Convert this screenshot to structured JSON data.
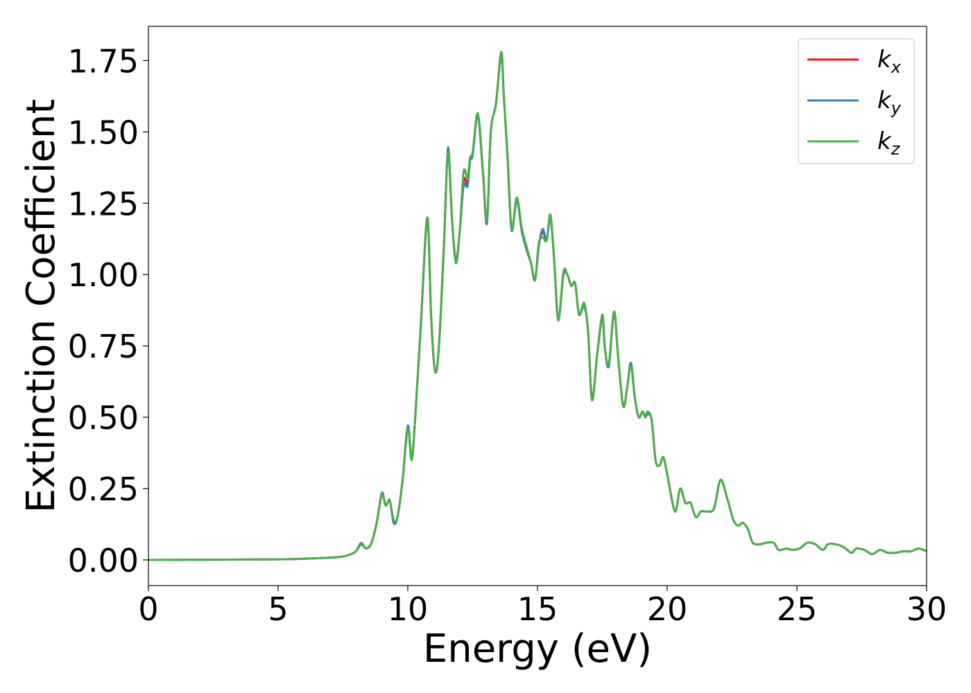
{
  "chart_data": {
    "type": "line",
    "xlabel": "Energy (eV)",
    "ylabel": "Extinction Coefficient",
    "xlim": [
      0,
      30
    ],
    "ylim": [
      -0.09,
      1.87
    ],
    "grid": false,
    "legend_position": "top-right",
    "x_ticks": [
      0,
      5,
      10,
      15,
      20,
      25,
      30
    ],
    "x_tick_labels": [
      "0",
      "5",
      "10",
      "15",
      "20",
      "25",
      "30"
    ],
    "y_ticks": [
      0.0,
      0.25,
      0.5,
      0.75,
      1.0,
      1.25,
      1.5,
      1.75
    ],
    "y_tick_labels": [
      "0.00",
      "0.25",
      "0.50",
      "0.75",
      "1.00",
      "1.25",
      "1.50",
      "1.75"
    ],
    "x": [
      0,
      5,
      7,
      7.5,
      7.8,
      8.0,
      8.2,
      8.4,
      8.6,
      8.8,
      9.0,
      9.15,
      9.3,
      9.45,
      9.6,
      9.8,
      10.0,
      10.15,
      10.3,
      10.5,
      10.75,
      10.9,
      11.05,
      11.2,
      11.4,
      11.55,
      11.7,
      11.85,
      12.0,
      12.15,
      12.3,
      12.4,
      12.5,
      12.7,
      12.9,
      13.05,
      13.2,
      13.4,
      13.6,
      13.7,
      13.85,
      14.0,
      14.2,
      14.4,
      14.6,
      14.75,
      14.9,
      15.05,
      15.2,
      15.35,
      15.5,
      15.65,
      15.8,
      16.0,
      16.15,
      16.3,
      16.45,
      16.6,
      16.8,
      16.95,
      17.1,
      17.3,
      17.5,
      17.6,
      17.75,
      17.95,
      18.1,
      18.3,
      18.45,
      18.6,
      18.75,
      18.9,
      19.05,
      19.15,
      19.25,
      19.4,
      19.55,
      19.7,
      19.85,
      20.0,
      20.3,
      20.5,
      20.7,
      20.9,
      21.1,
      21.3,
      21.5,
      21.8,
      22.05,
      22.3,
      22.55,
      22.75,
      22.9,
      23.1,
      23.3,
      23.6,
      23.8,
      24.1,
      24.3,
      24.6,
      24.8,
      25.1,
      25.4,
      25.7,
      26.0,
      26.2,
      26.5,
      26.8,
      27.1,
      27.3,
      27.6,
      27.9,
      28.2,
      28.5,
      28.8,
      29.1,
      29.4,
      29.7,
      30
    ],
    "series": [
      {
        "name": "k_x",
        "name_base": "k",
        "name_sub": "x",
        "color": "#e41a1c",
        "values": [
          0,
          0.002,
          0.008,
          0.012,
          0.02,
          0.03,
          0.055,
          0.04,
          0.06,
          0.13,
          0.23,
          0.19,
          0.21,
          0.14,
          0.15,
          0.28,
          0.47,
          0.35,
          0.52,
          0.82,
          1.2,
          0.85,
          0.66,
          0.75,
          1.12,
          1.44,
          1.2,
          1.05,
          1.15,
          1.33,
          1.32,
          1.4,
          1.42,
          1.56,
          1.35,
          1.18,
          1.5,
          1.6,
          1.78,
          1.63,
          1.4,
          1.16,
          1.26,
          1.15,
          1.08,
          1.04,
          0.98,
          1.1,
          1.15,
          1.12,
          1.2,
          1.04,
          0.84,
          1.0,
          1.0,
          0.96,
          0.97,
          0.86,
          0.89,
          0.8,
          0.56,
          0.72,
          0.85,
          0.74,
          0.68,
          0.87,
          0.72,
          0.54,
          0.6,
          0.69,
          0.57,
          0.5,
          0.52,
          0.5,
          0.51,
          0.49,
          0.35,
          0.33,
          0.36,
          0.3,
          0.17,
          0.25,
          0.2,
          0.2,
          0.15,
          0.17,
          0.17,
          0.18,
          0.28,
          0.22,
          0.14,
          0.12,
          0.13,
          0.11,
          0.06,
          0.055,
          0.06,
          0.06,
          0.035,
          0.04,
          0.035,
          0.04,
          0.06,
          0.055,
          0.035,
          0.055,
          0.055,
          0.045,
          0.025,
          0.04,
          0.035,
          0.02,
          0.035,
          0.025,
          0.025,
          0.03,
          0.03,
          0.04,
          0.03
        ]
      },
      {
        "name": "k_y",
        "name_base": "k",
        "name_sub": "y",
        "color": "#377eb8",
        "values": [
          0,
          0.002,
          0.008,
          0.012,
          0.02,
          0.03,
          0.055,
          0.04,
          0.06,
          0.13,
          0.235,
          0.19,
          0.21,
          0.13,
          0.15,
          0.28,
          0.47,
          0.35,
          0.52,
          0.82,
          1.19,
          0.85,
          0.66,
          0.75,
          1.12,
          1.445,
          1.2,
          1.05,
          1.15,
          1.31,
          1.31,
          1.4,
          1.42,
          1.56,
          1.35,
          1.18,
          1.5,
          1.6,
          1.77,
          1.63,
          1.4,
          1.155,
          1.26,
          1.15,
          1.08,
          1.04,
          0.98,
          1.1,
          1.16,
          1.12,
          1.2,
          1.04,
          0.84,
          1.0,
          1.0,
          0.96,
          0.97,
          0.86,
          0.89,
          0.8,
          0.56,
          0.72,
          0.85,
          0.74,
          0.68,
          0.87,
          0.72,
          0.54,
          0.6,
          0.69,
          0.57,
          0.5,
          0.52,
          0.5,
          0.51,
          0.49,
          0.35,
          0.33,
          0.36,
          0.3,
          0.17,
          0.25,
          0.2,
          0.2,
          0.15,
          0.17,
          0.17,
          0.18,
          0.28,
          0.22,
          0.14,
          0.12,
          0.13,
          0.11,
          0.06,
          0.055,
          0.06,
          0.06,
          0.035,
          0.04,
          0.035,
          0.04,
          0.06,
          0.055,
          0.035,
          0.055,
          0.055,
          0.045,
          0.025,
          0.04,
          0.035,
          0.02,
          0.035,
          0.025,
          0.025,
          0.03,
          0.03,
          0.04,
          0.03
        ]
      },
      {
        "name": "k_z",
        "name_base": "k",
        "name_sub": "z",
        "color": "#4daf4a",
        "values": [
          0,
          0.002,
          0.008,
          0.012,
          0.02,
          0.03,
          0.06,
          0.04,
          0.06,
          0.13,
          0.23,
          0.19,
          0.21,
          0.14,
          0.15,
          0.28,
          0.46,
          0.35,
          0.52,
          0.82,
          1.2,
          0.85,
          0.66,
          0.75,
          1.12,
          1.43,
          1.2,
          1.04,
          1.15,
          1.36,
          1.34,
          1.41,
          1.43,
          1.565,
          1.36,
          1.19,
          1.5,
          1.6,
          1.78,
          1.63,
          1.41,
          1.16,
          1.27,
          1.16,
          1.09,
          1.04,
          0.98,
          1.11,
          1.13,
          1.12,
          1.21,
          1.04,
          0.84,
          1.01,
          1.0,
          0.96,
          0.97,
          0.86,
          0.9,
          0.8,
          0.56,
          0.72,
          0.86,
          0.74,
          0.69,
          0.87,
          0.72,
          0.54,
          0.6,
          0.68,
          0.57,
          0.5,
          0.52,
          0.5,
          0.52,
          0.49,
          0.35,
          0.33,
          0.36,
          0.3,
          0.17,
          0.25,
          0.2,
          0.2,
          0.15,
          0.17,
          0.17,
          0.18,
          0.28,
          0.22,
          0.14,
          0.12,
          0.13,
          0.11,
          0.06,
          0.055,
          0.06,
          0.06,
          0.035,
          0.04,
          0.035,
          0.04,
          0.06,
          0.055,
          0.035,
          0.055,
          0.055,
          0.045,
          0.025,
          0.04,
          0.035,
          0.02,
          0.035,
          0.025,
          0.025,
          0.03,
          0.03,
          0.04,
          0.03
        ]
      }
    ]
  }
}
